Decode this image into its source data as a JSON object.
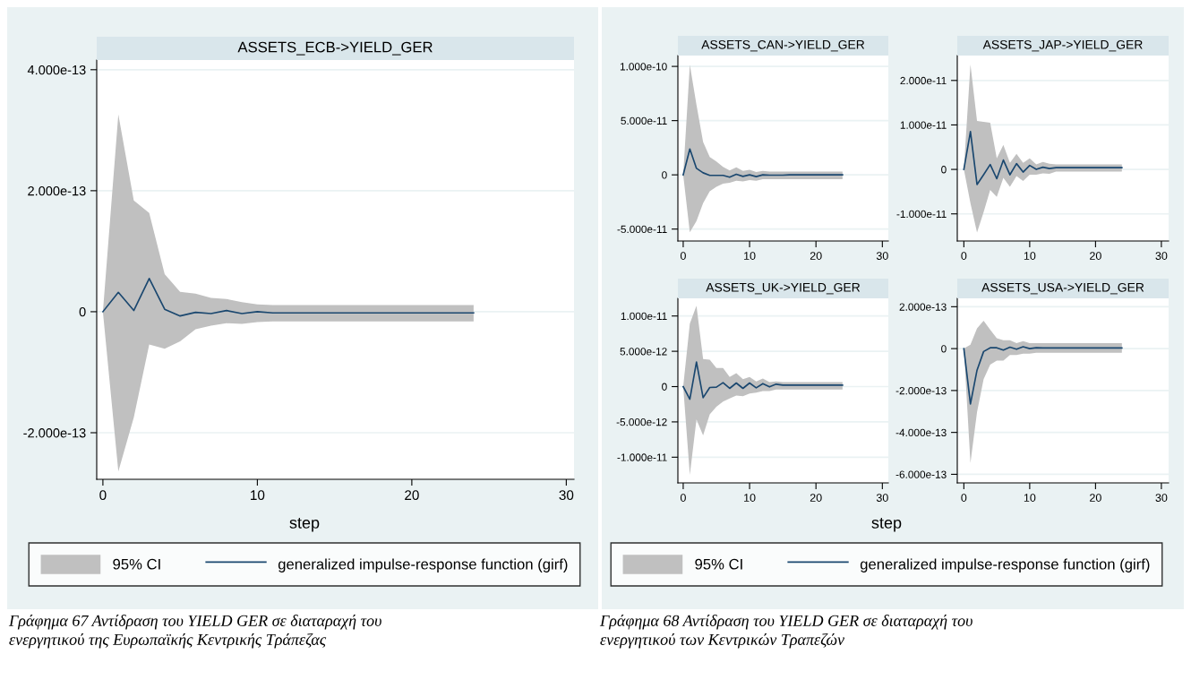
{
  "chart_data": [
    {
      "type": "line",
      "title": "ASSETS_ECB->YIELD_GER",
      "xlabel": "step",
      "x": [
        0,
        1,
        2,
        3,
        4,
        5,
        6,
        7,
        8,
        9,
        10,
        11,
        12,
        13,
        14,
        15,
        16,
        17,
        18,
        19,
        20,
        21,
        22,
        23,
        24
      ],
      "xlim": [
        -0.4,
        30.5
      ],
      "xticks": [
        0,
        10,
        20,
        30
      ],
      "ylim": [
        -2.77e-13,
        4.16e-13
      ],
      "yticks": [
        {
          "value": -2e-13,
          "label": "-2.000e-13"
        },
        0,
        {
          "value": 2e-13,
          "label": "2.000e-13"
        },
        {
          "value": 4e-13,
          "label": "4.000e-13"
        }
      ],
      "grid": "y",
      "legend": "bottom",
      "series": [
        {
          "name": "generalized impulse-response function (girf)",
          "type": "line",
          "color": "#1a476f",
          "values": [
            0,
            3.2e-14,
            2e-15,
            5.5e-14,
            4e-15,
            -7e-15,
            -1e-15,
            -3e-15,
            2e-15,
            -3e-15,
            0,
            -2e-15,
            -2e-15,
            -2e-15,
            -2e-15,
            -2e-15,
            -2e-15,
            -2e-15,
            -2e-15,
            -2e-15,
            -2e-15,
            -2e-15,
            -2e-15,
            -2e-15,
            -2e-15
          ],
          "upper": [
            0,
            3.26e-13,
            1.84e-13,
            1.63e-13,
            6.2e-14,
            3.3e-14,
            3e-14,
            2.3e-14,
            2.1e-14,
            1.6e-14,
            1.2e-14,
            1.1e-14,
            1.1e-14,
            1.1e-14,
            1.1e-14,
            1.1e-14,
            1.1e-14,
            1.1e-14,
            1.1e-14,
            1.1e-14,
            1.1e-14,
            1.1e-14,
            1.1e-14,
            1.1e-14,
            1.1e-14
          ],
          "lower": [
            0,
            -2.64e-13,
            -1.75e-13,
            -5.4e-14,
            -6.1e-14,
            -4.9e-14,
            -2.9e-14,
            -2.3e-14,
            -1.9e-14,
            -2e-14,
            -1.7e-14,
            -1.6e-14,
            -1.6e-14,
            -1.6e-14,
            -1.6e-14,
            -1.6e-14,
            -1.6e-14,
            -1.6e-14,
            -1.6e-14,
            -1.6e-14,
            -1.6e-14,
            -1.6e-14,
            -1.6e-14,
            -1.6e-14,
            -1.6e-14
          ]
        }
      ],
      "annotations": [
        "95% CI",
        "Γράφημα 67 Αντίδραση του YIELD GER σε διαταραχή του\nενεργητικού της Ευρωπαϊκής Κεντρικής Τράπεζας"
      ]
    },
    {
      "type": "line",
      "title": "ASSETS_CAN->YIELD_GER",
      "x": [
        0,
        1,
        2,
        3,
        4,
        5,
        6,
        7,
        8,
        9,
        10,
        11,
        12,
        13,
        14,
        15,
        16,
        17,
        18,
        19,
        20,
        21,
        22,
        23,
        24
      ],
      "xlim": [
        -0.8,
        30.9
      ],
      "xticks": [
        0,
        10,
        20,
        30
      ],
      "ylim": [
        -6.1e-11,
        1.1e-10
      ],
      "yticks": [
        {
          "value": -5e-11,
          "label": "-5.000e-11"
        },
        0,
        {
          "value": 5e-11,
          "label": "5.000e-11"
        },
        {
          "value": 1e-10,
          "label": "1.000e-10"
        }
      ],
      "grid": "y",
      "series": [
        {
          "type": "line",
          "color": "#1a476f",
          "values": [
            0,
            2.39e-11,
            6e-12,
            1.9e-12,
            -5e-13,
            -5e-13,
            -5e-13,
            -2.2e-12,
            5e-13,
            -1.4e-12,
            0,
            -1.6e-12,
            0,
            -3e-13,
            -3e-13,
            -3e-13,
            0,
            0,
            0,
            0,
            0,
            0,
            0,
            0,
            0
          ],
          "upper": [
            0,
            1.016e-10,
            6.46e-11,
            3.02e-11,
            1.65e-11,
            1.24e-11,
            7.4e-12,
            4.1e-12,
            6.9e-12,
            3.6e-12,
            4.7e-12,
            2.7e-12,
            3.6e-12,
            3e-12,
            3e-12,
            3e-12,
            3e-12,
            3e-12,
            3e-12,
            3e-12,
            3e-12,
            3e-12,
            3e-12,
            3e-12,
            3e-12
          ],
          "lower": [
            0,
            -5.3e-11,
            -4.26e-11,
            -2.61e-11,
            -1.51e-11,
            -1.1e-11,
            -8.2e-12,
            -7.4e-12,
            -5.5e-12,
            -6e-12,
            -4.9e-12,
            -5.5e-12,
            -4.1e-12,
            -4e-12,
            -4e-12,
            -4e-12,
            -4e-12,
            -4e-12,
            -4e-12,
            -4e-12,
            -4e-12,
            -4e-12,
            -4e-12,
            -4e-12,
            -4e-12
          ]
        }
      ],
      "annotations": [
        "Γράφημα 68 Αντίδραση του YIELD GER σε διαταραχή του\nενεργητικού των Κεντρικών Τραπεζών"
      ]
    },
    {
      "type": "line",
      "title": "ASSETS_JAP->YIELD_GER",
      "x": [
        0,
        1,
        2,
        3,
        4,
        5,
        6,
        7,
        8,
        9,
        10,
        11,
        12,
        13,
        14,
        15,
        16,
        17,
        18,
        19,
        20,
        21,
        22,
        23,
        24
      ],
      "xlim": [
        -1.0,
        31.1
      ],
      "xticks": [
        0,
        10,
        20,
        30
      ],
      "ylim": [
        -1.61e-11,
        2.56e-11
      ],
      "yticks": [
        {
          "value": -1e-11,
          "label": "-1.000e-11"
        },
        0,
        {
          "value": 1e-11,
          "label": "1.000e-11"
        },
        {
          "value": 2e-11,
          "label": "2.000e-11"
        }
      ],
      "grid": "y",
      "series": [
        {
          "type": "line",
          "color": "#1a476f",
          "values": [
            0,
            8.5e-12,
            -3.4e-12,
            -1.2e-12,
            1.1e-12,
            -2.1e-12,
            2.1e-12,
            -1.2e-12,
            1.3e-12,
            -6e-13,
            9e-13,
            0,
            5e-13,
            2e-13,
            4e-13,
            4e-13,
            4e-13,
            4e-13,
            4e-13,
            4e-13,
            4e-13,
            4e-13,
            4e-13,
            4e-13,
            4e-13
          ],
          "upper": [
            0,
            2.36e-11,
            1.09e-11,
            1.07e-11,
            1.05e-11,
            2.5e-12,
            5.5e-12,
            1.5e-12,
            3.5e-12,
            1.5e-12,
            2.5e-12,
            1.1e-12,
            1.7e-12,
            1.3e-12,
            1.1e-12,
            1.1e-12,
            1.1e-12,
            1.1e-12,
            1.1e-12,
            1.1e-12,
            1.1e-12,
            1.1e-12,
            1.1e-12,
            1.1e-12,
            1.1e-12
          ],
          "lower": [
            0,
            -7.6e-12,
            -1.42e-11,
            -9.6e-12,
            -4.6e-12,
            -6.2e-12,
            -1.9e-12,
            -3.9e-12,
            -1.5e-12,
            -2.6e-12,
            -1.2e-12,
            -1.2e-12,
            -9e-13,
            -1e-12,
            -5e-13,
            -5e-13,
            -5e-13,
            -5e-13,
            -5e-13,
            -5e-13,
            -5e-13,
            -5e-13,
            -5e-13,
            -5e-13,
            -5e-13
          ]
        }
      ]
    },
    {
      "type": "line",
      "title": "ASSETS_UK->YIELD_GER",
      "x": [
        0,
        1,
        2,
        3,
        4,
        5,
        6,
        7,
        8,
        9,
        10,
        11,
        12,
        13,
        14,
        15,
        16,
        17,
        18,
        19,
        20,
        21,
        22,
        23,
        24
      ],
      "xlim": [
        -0.8,
        30.9
      ],
      "xticks": [
        0,
        10,
        20,
        30
      ],
      "ylim": [
        -1.364e-11,
        1.25e-11
      ],
      "yticks": [
        {
          "value": -1e-11,
          "label": "-1.000e-11"
        },
        {
          "value": -5e-12,
          "label": "-5.000e-12"
        },
        0,
        {
          "value": 5e-12,
          "label": "5.000e-12"
        },
        {
          "value": 1e-11,
          "label": "1.000e-11"
        }
      ],
      "grid": "y",
      "series": [
        {
          "type": "line",
          "color": "#1a476f",
          "values": [
            0,
            -1.78e-12,
            3.47e-12,
            -1.57e-12,
            -1.3e-13,
            -8e-14,
            5.5e-13,
            -2.5e-13,
            5.1e-13,
            -2.5e-13,
            5.1e-13,
            -1.7e-13,
            4.2e-13,
            -4e-14,
            3.4e-13,
            2.1e-13,
            2.1e-13,
            2.1e-13,
            2.1e-13,
            2.1e-13,
            2.1e-13,
            2.1e-13,
            2.1e-13,
            2.1e-13,
            2.1e-13
          ],
          "upper": [
            0,
            8.9e-12,
            1.144e-11,
            3.9e-12,
            3.81e-12,
            2.63e-12,
            2.63e-12,
            1.36e-12,
            1.91e-12,
            1.06e-12,
            1.36e-12,
            7.2e-13,
            1.14e-12,
            6.4e-13,
            7.2e-13,
            6.4e-13,
            6.4e-13,
            6.4e-13,
            6.4e-13,
            6.4e-13,
            6.4e-13,
            6.4e-13,
            6.4e-13,
            6.4e-13,
            6.4e-13
          ],
          "lower": [
            0,
            -1.25e-11,
            -4.66e-12,
            -6.91e-12,
            -3.94e-12,
            -2.84e-12,
            -2.12e-12,
            -1.69e-12,
            -1.27e-12,
            -1.36e-12,
            -9.7e-13,
            -8.5e-13,
            -6.4e-13,
            -6.4e-13,
            -4.2e-13,
            -4.2e-13,
            -4.2e-13,
            -4.2e-13,
            -4.2e-13,
            -4.2e-13,
            -4.2e-13,
            -4.2e-13,
            -4.2e-13,
            -4.2e-13,
            -4.2e-13
          ]
        }
      ]
    },
    {
      "type": "line",
      "title": "ASSETS_USA->YIELD_GER",
      "xlabel": "step",
      "x": [
        0,
        1,
        2,
        3,
        4,
        5,
        6,
        7,
        8,
        9,
        10,
        11,
        12,
        13,
        14,
        15,
        16,
        17,
        18,
        19,
        20,
        21,
        22,
        23,
        24
      ],
      "xlim": [
        -1.0,
        31.1
      ],
      "xticks": [
        0,
        10,
        20,
        30
      ],
      "ylim": [
        -6.41e-13,
        2.4e-13
      ],
      "yticks": [
        {
          "value": -6e-13,
          "label": "-6.000e-13"
        },
        {
          "value": -4e-13,
          "label": "-4.000e-13"
        },
        {
          "value": -2e-13,
          "label": "-2.000e-13"
        },
        0,
        {
          "value": 2e-13,
          "label": "2.000e-13"
        }
      ],
      "grid": "y",
      "legend": "bottom",
      "series": [
        {
          "name": "generalized impulse-response function (girf)",
          "type": "line",
          "color": "#1a476f",
          "values": [
            0,
            -2.64e-13,
            -1.03e-13,
            -1.4e-14,
            4e-15,
            4e-15,
            -7e-15,
            7e-15,
            -3e-15,
            9e-15,
            0,
            4e-15,
            3e-15,
            3e-15,
            3e-15,
            3e-15,
            3e-15,
            3e-15,
            3e-15,
            3e-15,
            3e-15,
            3e-15,
            3e-15,
            3e-15,
            3e-15
          ],
          "upper": [
            0,
            1.9e-14,
            9.7e-14,
            1.33e-13,
            9e-14,
            5e-14,
            4e-14,
            4e-14,
            2.6e-14,
            3.6e-14,
            2.6e-14,
            2.6e-14,
            2.6e-14,
            2.6e-14,
            2.6e-14,
            2.6e-14,
            2.6e-14,
            2.6e-14,
            2.6e-14,
            2.6e-14,
            2.6e-14,
            2.6e-14,
            2.6e-14,
            2.6e-14,
            2.6e-14
          ],
          "lower": [
            0,
            -5.46e-13,
            -3.03e-13,
            -1.46e-13,
            -7.7e-14,
            -5.7e-14,
            -5.7e-14,
            -3.1e-14,
            -3.1e-14,
            -2.4e-14,
            -2.4e-14,
            -2e-14,
            -2e-14,
            -2e-14,
            -2e-14,
            -2e-14,
            -2e-14,
            -2e-14,
            -2e-14,
            -2e-14,
            -2e-14,
            -2e-14,
            -2e-14,
            -2e-14,
            -2e-14
          ]
        }
      ],
      "annotations": [
        "95% CI"
      ]
    }
  ]
}
